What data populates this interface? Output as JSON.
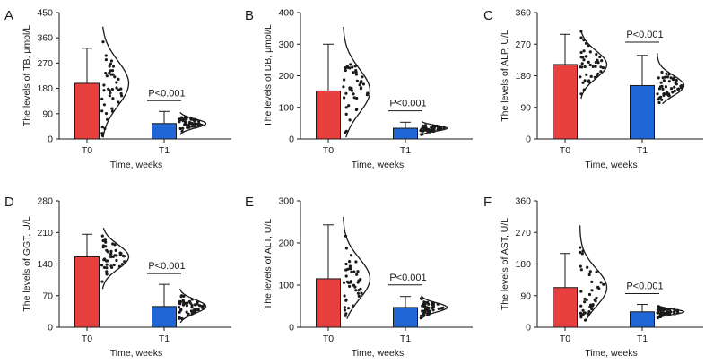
{
  "figure": {
    "colors": {
      "T0": "#e8403f",
      "T1": "#2166d6",
      "axis": "#1a1a1a",
      "dots": "#1a1a1a"
    }
  },
  "chart_data": [
    {
      "panel": "A",
      "type": "bar",
      "title": "",
      "xlabel": "Time, weeks",
      "ylabel": "The levels of TB, μmol/L",
      "categories": [
        "T0",
        "T1"
      ],
      "ylim": [
        0,
        450
      ],
      "yticks": [
        "0",
        "90",
        "180",
        "270",
        "360",
        "450"
      ],
      "series": [
        {
          "name": "mean",
          "values": [
            198,
            55
          ]
        },
        {
          "name": "upper_error",
          "values": [
            323,
            98
          ]
        }
      ],
      "distribution_range": {
        "T0": [
          5,
          400
        ],
        "T1": [
          15,
          95
        ]
      },
      "annotation": "P<0.001"
    },
    {
      "panel": "B",
      "type": "bar",
      "title": "",
      "xlabel": "Time, weeks",
      "ylabel": "The levels of DB, μmol/L",
      "categories": [
        "T0",
        "T1"
      ],
      "ylim": [
        0,
        400
      ],
      "yticks": [
        "0",
        "100",
        "200",
        "300",
        "400"
      ],
      "series": [
        {
          "name": "mean",
          "values": [
            152,
            34
          ]
        },
        {
          "name": "upper_error",
          "values": [
            300,
            53
          ]
        }
      ],
      "distribution_range": {
        "T0": [
          5,
          355
        ],
        "T1": [
          10,
          55
        ]
      },
      "annotation": "P<0.001"
    },
    {
      "panel": "C",
      "type": "bar",
      "title": "",
      "xlabel": "Time, weeks",
      "ylabel": "The levels of ALP, U/L",
      "categories": [
        "T0",
        "T1"
      ],
      "ylim": [
        0,
        360
      ],
      "yticks": [
        "0",
        "90",
        "180",
        "270",
        "360"
      ],
      "series": [
        {
          "name": "mean",
          "values": [
            212,
            152
          ]
        },
        {
          "name": "upper_error",
          "values": [
            298,
            238
          ]
        }
      ],
      "distribution_range": {
        "T0": [
          115,
          310
        ],
        "T1": [
          100,
          245
        ]
      },
      "annotation": "P<0.001"
    },
    {
      "panel": "D",
      "type": "bar",
      "title": "",
      "xlabel": "Time, weeks",
      "ylabel": "The levels of GGT, U/L",
      "categories": [
        "T0",
        "T1"
      ],
      "ylim": [
        0,
        280
      ],
      "yticks": [
        "0",
        "70",
        "140",
        "210",
        "280"
      ],
      "series": [
        {
          "name": "mean",
          "values": [
            156,
            46
          ]
        },
        {
          "name": "upper_error",
          "values": [
            206,
            95
          ]
        }
      ],
      "distribution_range": {
        "T0": [
          85,
          220
        ],
        "T1": [
          10,
          85
        ]
      },
      "annotation": "P<0.001"
    },
    {
      "panel": "E",
      "type": "bar",
      "title": "",
      "xlabel": "Time, weeks",
      "ylabel": "The levels of ALT, U/L",
      "categories": [
        "T0",
        "T1"
      ],
      "ylim": [
        0,
        300
      ],
      "yticks": [
        "0",
        "100",
        "200",
        "300"
      ],
      "series": [
        {
          "name": "mean",
          "values": [
            115,
            47
          ]
        },
        {
          "name": "upper_error",
          "values": [
            243,
            73
          ]
        }
      ],
      "distribution_range": {
        "T0": [
          20,
          262
        ],
        "T1": [
          20,
          75
        ]
      },
      "annotation": "P<0.001"
    },
    {
      "panel": "F",
      "type": "bar",
      "title": "",
      "xlabel": "Time, weeks",
      "ylabel": "The levels of AST, U/L",
      "categories": [
        "T0",
        "T1"
      ],
      "ylim": [
        0,
        360
      ],
      "yticks": [
        "0",
        "90",
        "180",
        "270",
        "360"
      ],
      "series": [
        {
          "name": "mean",
          "values": [
            113,
            44
          ]
        },
        {
          "name": "upper_error",
          "values": [
            210,
            65
          ]
        }
      ],
      "distribution_range": {
        "T0": [
          20,
          290
        ],
        "T1": [
          25,
          62
        ]
      },
      "annotation": "P<0.001"
    }
  ]
}
